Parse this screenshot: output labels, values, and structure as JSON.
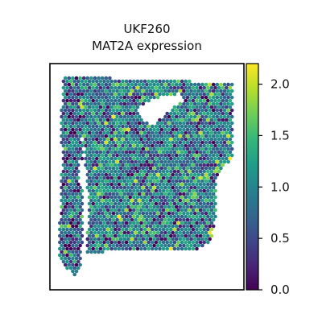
{
  "chart_data": {
    "type": "heatmap",
    "title": "UKF260",
    "subtitle": "MAT2A expression",
    "colorbar": {
      "min": 0.0,
      "max": 2.2,
      "ticks": [
        {
          "value": 0.0,
          "label": "0.0"
        },
        {
          "value": 0.5,
          "label": "0.5"
        },
        {
          "value": 1.0,
          "label": "1.0"
        },
        {
          "value": 1.5,
          "label": "1.5"
        },
        {
          "value": 2.0,
          "label": "2.0"
        }
      ],
      "colormap": "viridis",
      "colors": [
        "#440154",
        "#482878",
        "#3e4989",
        "#31688e",
        "#26828e",
        "#1f9e89",
        "#35b779",
        "#6ece58",
        "#b5de2b",
        "#fde725"
      ]
    },
    "spots": {
      "typical_value": 1.0,
      "approx_range": [
        0.0,
        2.2
      ],
      "notes": "spatial transcriptomics spots on hexagonal grid, mostly 0.6-1.4"
    }
  }
}
